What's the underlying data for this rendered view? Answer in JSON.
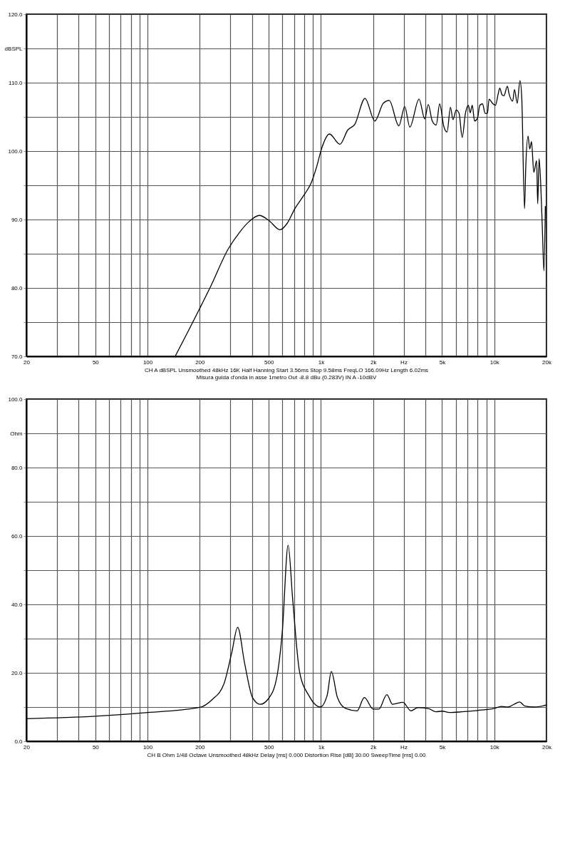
{
  "chart_data": [
    {
      "type": "line",
      "log": "x",
      "grid": true,
      "xlim": [
        20,
        20000
      ],
      "ylim": [
        70,
        120
      ],
      "xticks": [
        20,
        {
          "value": 30,
          "label": null
        },
        {
          "value": 40,
          "label": null
        },
        50,
        {
          "value": 60,
          "label": null
        },
        {
          "value": 70,
          "label": null
        },
        {
          "value": 80,
          "label": null
        },
        {
          "value": 90,
          "label": null
        },
        100,
        200,
        {
          "value": 300,
          "label": null
        },
        {
          "value": 400,
          "label": null
        },
        500,
        {
          "value": 600,
          "label": null
        },
        {
          "value": 700,
          "label": null
        },
        {
          "value": 800,
          "label": null
        },
        {
          "value": 900,
          "label": null
        },
        {
          "value": 1000,
          "label": "1k"
        },
        {
          "value": 2000,
          "label": "2k"
        },
        {
          "value": 3000,
          "label": "Hz"
        },
        {
          "value": 4000,
          "label": null
        },
        {
          "value": 5000,
          "label": "5k"
        },
        {
          "value": 6000,
          "label": null
        },
        {
          "value": 7000,
          "label": null
        },
        {
          "value": 8000,
          "label": null
        },
        {
          "value": 9000,
          "label": null
        },
        {
          "value": 10000,
          "label": "10k"
        },
        {
          "value": 20000,
          "label": "20k"
        }
      ],
      "yticks": [
        {
          "value": 70,
          "label": "70.0"
        },
        {
          "value": 75,
          "label": null
        },
        {
          "value": 80,
          "label": "80.0"
        },
        {
          "value": 85,
          "label": null
        },
        {
          "value": 90,
          "label": "90.0"
        },
        {
          "value": 95,
          "label": null
        },
        {
          "value": 100,
          "label": "100.0"
        },
        {
          "value": 105,
          "label": null
        },
        {
          "value": 110,
          "label": "110.0"
        },
        {
          "value": 115,
          "label": "dBSPL"
        },
        {
          "value": 120,
          "label": "120.0"
        }
      ],
      "x": [
        145,
        200,
        230,
        292,
        341,
        385,
        442,
        499,
        581,
        637,
        708,
        800,
        877,
        947,
        1007,
        1120,
        1286,
        1430,
        1567,
        1796,
        2047,
        2291,
        2476,
        2815,
        3044,
        3257,
        3681,
        3971,
        4159,
        4387,
        4623,
        4841,
        5115,
        5340,
        5587,
        5776,
        6030,
        6268,
        6530,
        6813,
        7088,
        7260,
        7463,
        7694,
        8001,
        8247,
        8555,
        8853,
        9124,
        9331,
        9750,
        10156,
        10520,
        10753,
        11096,
        11372,
        11890,
        12158,
        12762,
        13077,
        13557,
        14063,
        14400,
        14940,
        15180,
        15660,
        16010,
        16390,
        16900,
        17540,
        17800,
        18130,
        18540,
        18980,
        19330,
        19690
      ],
      "series": [
        {
          "color": "#000000",
          "values": [
            70.1,
            77.0,
            80.1,
            85.7,
            88.2,
            89.7,
            90.6,
            89.9,
            88.5,
            89.4,
            91.6,
            93.6,
            95.3,
            97.8,
            100.3,
            102.5,
            101.0,
            103.1,
            103.9,
            107.7,
            104.4,
            107.0,
            107.4,
            103.7,
            106.5,
            103.5,
            107.6,
            104.7,
            106.8,
            104.4,
            103.8,
            106.9,
            103.6,
            102.8,
            106.4,
            104.6,
            106.0,
            105.5,
            102.0,
            105.5,
            106.7,
            105.6,
            106.7,
            104.4,
            104.8,
            106.7,
            106.9,
            105.5,
            105.5,
            107.6,
            107.0,
            106.7,
            108.3,
            109.2,
            108.2,
            108.1,
            109.5,
            108.4,
            107.3,
            109.0,
            107.0,
            110.3,
            107.8,
            91.6,
            97.5,
            102.2,
            100.3,
            101.4,
            96.9,
            98.6,
            92.3,
            98.9,
            95.0,
            87.8,
            82.5,
            91.9
          ]
        }
      ],
      "annotations": [
        "CH A   dBSPL   Unsmoothed   48kHz   16K   Half Hanning   Start 3.56ms   Stop 9.58ms   FreqLO 166.09Hz   Length 6.02ms",
        "Misura guida d'onda in asse 1metro   Out -8.8 dBu (0.283V)   IN A -10dBV"
      ]
    },
    {
      "type": "line",
      "log": "x",
      "grid": true,
      "xlim": [
        20,
        20000
      ],
      "ylim": [
        0,
        100
      ],
      "xticks": [
        20,
        {
          "value": 30,
          "label": null
        },
        {
          "value": 40,
          "label": null
        },
        50,
        {
          "value": 60,
          "label": null
        },
        {
          "value": 70,
          "label": null
        },
        {
          "value": 80,
          "label": null
        },
        {
          "value": 90,
          "label": null
        },
        100,
        200,
        {
          "value": 300,
          "label": null
        },
        {
          "value": 400,
          "label": null
        },
        500,
        {
          "value": 600,
          "label": null
        },
        {
          "value": 700,
          "label": null
        },
        {
          "value": 800,
          "label": null
        },
        {
          "value": 900,
          "label": null
        },
        {
          "value": 1000,
          "label": "1k"
        },
        {
          "value": 2000,
          "label": "2k"
        },
        {
          "value": 3000,
          "label": "Hz"
        },
        {
          "value": 4000,
          "label": null
        },
        {
          "value": 5000,
          "label": "5k"
        },
        {
          "value": 6000,
          "label": null
        },
        {
          "value": 7000,
          "label": null
        },
        {
          "value": 8000,
          "label": null
        },
        {
          "value": 9000,
          "label": null
        },
        {
          "value": 10000,
          "label": "10k"
        },
        {
          "value": 20000,
          "label": "20k"
        }
      ],
      "yticks": [
        {
          "value": 0,
          "label": "0.0"
        },
        {
          "value": 10,
          "label": null
        },
        {
          "value": 20,
          "label": "20.0"
        },
        {
          "value": 30,
          "label": null
        },
        {
          "value": 40,
          "label": "40.0"
        },
        {
          "value": 50,
          "label": null
        },
        {
          "value": 60,
          "label": "60.0"
        },
        {
          "value": 70,
          "label": null
        },
        {
          "value": 80,
          "label": "80.0"
        },
        {
          "value": 90,
          "label": "Ohm"
        },
        {
          "value": 100,
          "label": "100.0"
        }
      ],
      "x": [
        20,
        50,
        94.6,
        200,
        236,
        275,
        306,
        331,
        363,
        403,
        446,
        499,
        555,
        599,
        647,
        687,
        753,
        851,
        991,
        1086,
        1148,
        1245,
        1386,
        1615,
        1782,
        2000,
        2159,
        2400,
        2590,
        2970,
        3303,
        3620,
        4200,
        4600,
        5000,
        5500,
        6500,
        8000,
        10000,
        11000,
        12000,
        13000,
        14000,
        15000,
        17000,
        20000
      ],
      "series": [
        {
          "color": "#000000",
          "values": [
            6.6,
            7.3,
            8.3,
            9.9,
            12.2,
            16.6,
            25.9,
            33.3,
            22.8,
            12.8,
            10.8,
            12.5,
            18.4,
            32.2,
            57.3,
            41.6,
            20.3,
            13.4,
            10.0,
            13.4,
            20.4,
            12.8,
            9.6,
            8.9,
            12.8,
            9.4,
            9.4,
            13.6,
            10.8,
            11.4,
            8.9,
            9.8,
            9.5,
            8.6,
            8.8,
            8.4,
            8.6,
            9.0,
            9.6,
            10.2,
            10.0,
            10.8,
            11.5,
            10.3,
            10.0,
            10.6
          ]
        }
      ],
      "annotations": [
        "CH B   Ohm   1/48 Octave   Unsmoothed   48kHz   Delay [ms] 0.000   Distortion Rise [dB] 30.00   SweepTime [ms] 0.00"
      ]
    }
  ]
}
